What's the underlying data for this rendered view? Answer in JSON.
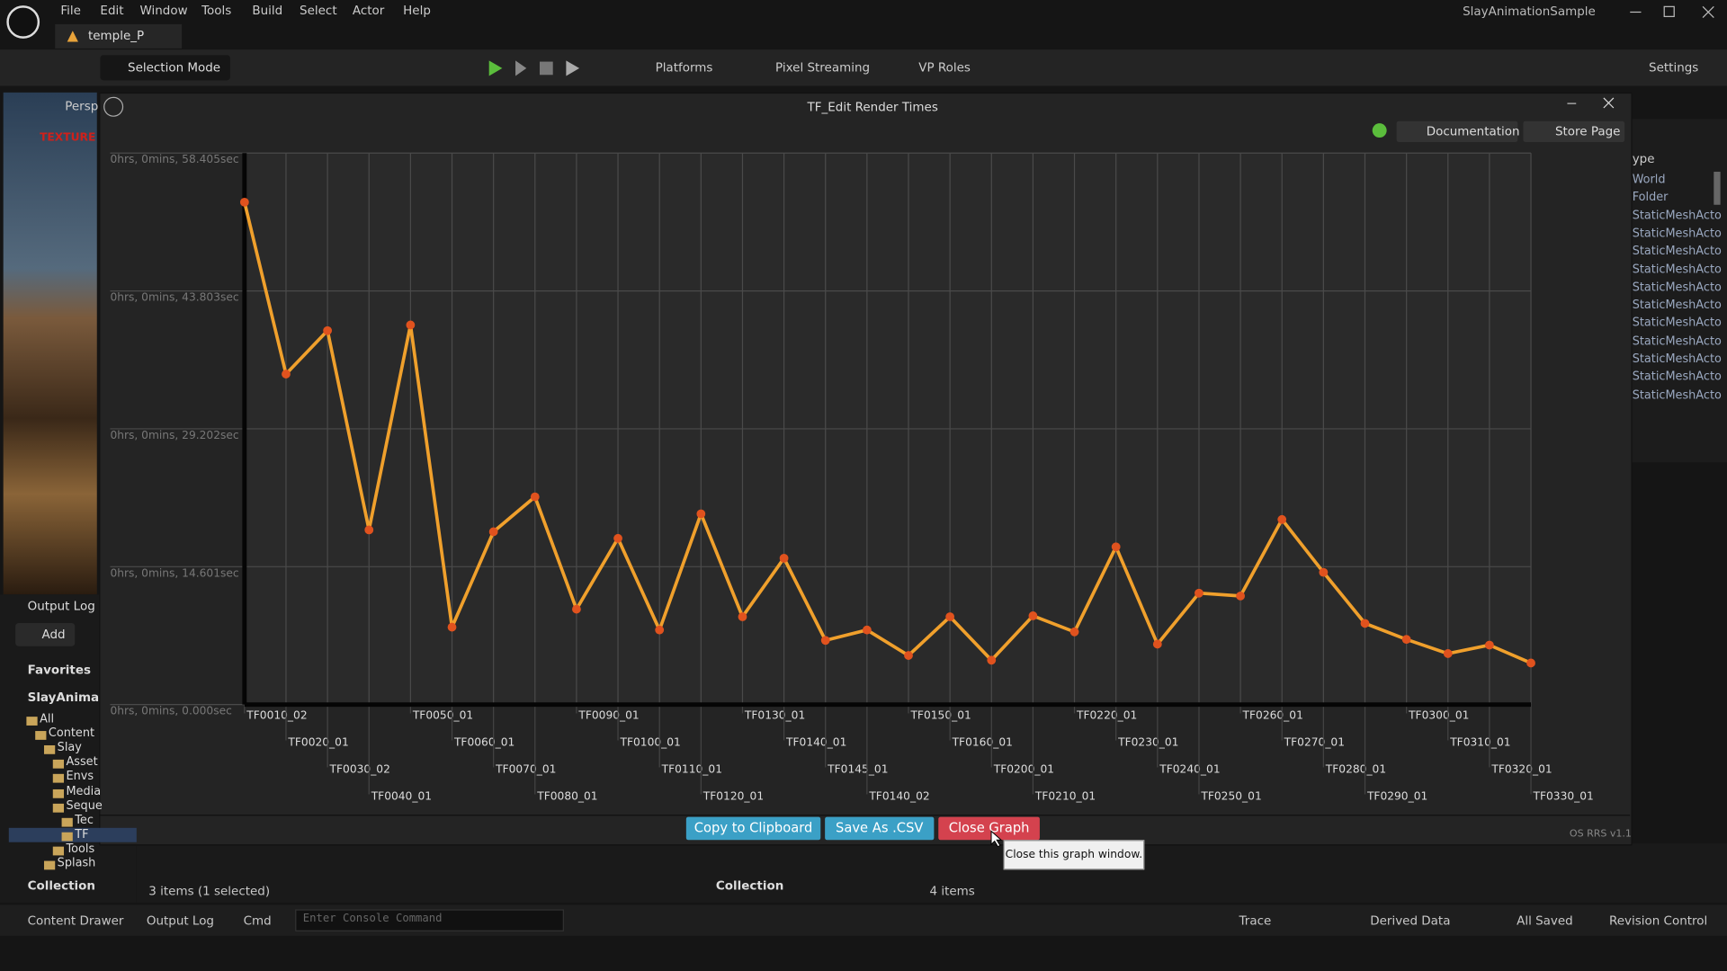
{
  "app": {
    "title": "SlayAnimationSample",
    "menu": [
      "File",
      "Edit",
      "Window",
      "Tools",
      "Build",
      "Select",
      "Actor",
      "Help"
    ],
    "tab": "temple_P"
  },
  "toolbar": {
    "mode": "Selection Mode",
    "platforms": "Platforms",
    "pixel_streaming": "Pixel Streaming",
    "vp_roles": "VP Roles",
    "settings": "Settings"
  },
  "viewport": {
    "perspective": "Persp",
    "overlay": "TEXTURE S"
  },
  "outliner": {
    "header": "ype",
    "rows": [
      "World",
      "Folder",
      "StaticMeshActo",
      "StaticMeshActo",
      "StaticMeshActo",
      "StaticMeshActo",
      "StaticMeshActo",
      "StaticMeshActo",
      "StaticMeshActo",
      "StaticMeshActo",
      "StaticMeshActo",
      "StaticMeshActo",
      "StaticMeshActo"
    ]
  },
  "content_browser": {
    "output_log": "Output Log",
    "add": "Add",
    "favorites": "Favorites",
    "root": "SlayAnimatio",
    "tree": [
      "All",
      "Content",
      "Slay",
      "Asset",
      "Envs",
      "Media",
      "Seque",
      "Tec",
      "TF",
      "Tools",
      "Splash"
    ],
    "collection": "Collection",
    "items_left": "3 items (1 selected)",
    "collection_right": "Collection",
    "items_right": "4 items"
  },
  "graph_window": {
    "title": "TF_Edit Render Times",
    "documentation": "Documentation",
    "store_page": "Store Page",
    "buttons": [
      "Copy to Clipboard",
      "Save As .CSV",
      "Close Graph"
    ],
    "version": "OS RRS v1.1",
    "tooltip": "Close this graph window."
  },
  "status_bar": {
    "content_drawer": "Content Drawer",
    "output_log": "Output Log",
    "cmd": "Cmd",
    "console_placeholder": "Enter Console Command",
    "trace": "Trace",
    "derived_data": "Derived Data",
    "all_saved": "All Saved",
    "revision_control": "Revision Control"
  },
  "chart_data": {
    "type": "line",
    "categories": [
      "TF0010_02",
      "TF0020_01",
      "TF0030_02",
      "TF0040_01",
      "TF0050_01",
      "TF0060_01",
      "TF0070_01",
      "TF0080_01",
      "TF0090_01",
      "TF0100_01",
      "TF0110_01",
      "TF0120_01",
      "TF0130_01",
      "TF0140_01",
      "TF0145_01",
      "TF0140_02",
      "TF0150_01",
      "TF0160_01",
      "TF0200_01",
      "TF0210_01",
      "TF0220_01",
      "TF0230_01",
      "TF0240_01",
      "TF0250_01",
      "TF0260_01",
      "TF0270_01",
      "TF0280_01",
      "TF0290_01",
      "TF0300_01",
      "TF0310_01",
      "TF0320_01",
      "TF0330_01"
    ],
    "values": [
      53.2,
      35.0,
      39.6,
      18.5,
      40.2,
      8.2,
      18.3,
      22.0,
      10.1,
      17.6,
      7.9,
      20.2,
      9.3,
      15.5,
      6.8,
      7.9,
      5.2,
      9.3,
      4.7,
      9.4,
      7.7,
      16.7,
      6.4,
      11.8,
      11.5,
      19.6,
      14.0,
      8.6,
      6.9,
      5.4,
      6.3,
      4.4
    ],
    "color": "#f0a02c",
    "marker_color": "#e0521e",
    "ylim": [
      0,
      58.405
    ],
    "yticks": [
      {
        "value": 0,
        "label": "0hrs, 0mins, 0.000sec"
      },
      {
        "value": 14.601,
        "label": "0hrs, 0mins, 14.601sec"
      },
      {
        "value": 29.202,
        "label": "0hrs, 0mins, 29.202sec"
      },
      {
        "value": 43.803,
        "label": "0hrs, 0mins, 43.803sec"
      },
      {
        "value": 58.405,
        "label": "0hrs, 0mins, 58.405sec"
      }
    ],
    "grid": true
  }
}
